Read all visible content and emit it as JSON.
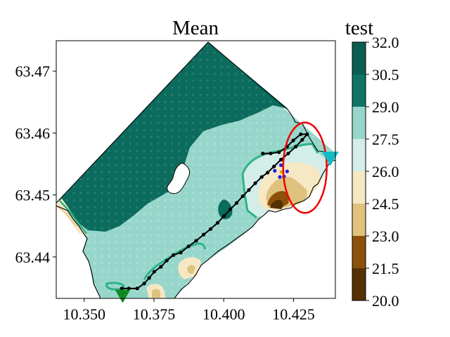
{
  "chart_data": {
    "type": "heatmap",
    "title": "Mean",
    "colorbar_label": "test",
    "xlim": [
      10.34,
      10.44
    ],
    "ylim": [
      63.4333,
      63.4749
    ],
    "x_ticks": [
      "10.350",
      "10.375",
      "10.400",
      "10.425"
    ],
    "x_tick_values": [
      10.35,
      10.375,
      10.4,
      10.425
    ],
    "y_ticks": [
      "63.44",
      "63.45",
      "63.46",
      "63.47"
    ],
    "y_tick_values": [
      63.44,
      63.45,
      63.46,
      63.47
    ],
    "colorbar": {
      "levels": [
        20.0,
        21.5,
        23.0,
        24.5,
        26.0,
        27.5,
        29.0,
        30.5,
        32.0
      ],
      "level_labels": [
        "20.0",
        "21.5",
        "23.0",
        "24.5",
        "26.0",
        "27.5",
        "29.0",
        "30.5",
        "32.0"
      ],
      "colors": [
        "#543005",
        "#8c510a",
        "#dfc27d",
        "#f6e8c3",
        "#d3ede8",
        "#97d6ca",
        "#0f7466",
        "#0a5d50",
        "#003c30"
      ]
    },
    "colors": {
      "deep": "#0b6b5d",
      "light": "#97d6ca",
      "contour": "#2db387",
      "track": "#000000",
      "ellipse": "#ee0000",
      "points": "#1f1fe8",
      "center": "#e0a500",
      "marker_east": "#14bcc4",
      "marker_south": "#0f8a22"
    },
    "track": [
      [
        10.3635,
        63.4349
      ],
      [
        10.366,
        63.4349
      ],
      [
        10.369,
        63.4349
      ],
      [
        10.3715,
        63.4357
      ],
      [
        10.3733,
        63.4366
      ],
      [
        10.3751,
        63.4376
      ],
      [
        10.3775,
        63.4384
      ],
      [
        10.3796,
        63.4394
      ],
      [
        10.382,
        63.4403
      ],
      [
        10.3846,
        63.4407
      ],
      [
        10.3874,
        63.4417
      ],
      [
        10.3901,
        63.4426
      ],
      [
        10.3928,
        63.4436
      ],
      [
        10.3953,
        63.4445
      ],
      [
        10.3978,
        63.4455
      ],
      [
        10.4001,
        63.4466
      ],
      [
        10.4024,
        63.4477
      ],
      [
        10.4046,
        63.4487
      ],
      [
        10.4068,
        63.4498
      ],
      [
        10.409,
        63.4508
      ],
      [
        10.4113,
        63.4519
      ],
      [
        10.4136,
        63.4529
      ],
      [
        10.4157,
        63.4536
      ],
      [
        10.418,
        63.4546
      ],
      [
        10.4205,
        63.4557
      ],
      [
        10.4231,
        63.4567
      ],
      [
        10.4258,
        63.4578
      ],
      [
        10.4281,
        63.4589
      ],
      [
        10.4299,
        63.4598
      ],
      [
        10.4276,
        63.4598
      ],
      [
        10.4249,
        63.4588
      ],
      [
        10.4227,
        63.4578
      ],
      [
        10.4198,
        63.4569
      ],
      [
        10.4168,
        63.4567
      ],
      [
        10.414,
        63.4567
      ]
    ],
    "sample_points": [
      [
        10.4205,
        63.4548
      ],
      [
        10.4183,
        63.4539
      ],
      [
        10.4227,
        63.4538
      ],
      [
        10.4216,
        63.453
      ],
      [
        10.4201,
        63.4529
      ]
    ],
    "center_point": [
      10.4207,
      63.4537
    ],
    "ellipse": {
      "cx": 10.4291,
      "cy": 63.4544,
      "rx": 0.0078,
      "ry": 0.0073
    },
    "markers": {
      "east": [
        10.4382,
        63.4559
      ],
      "south": [
        10.3638,
        63.4337
      ]
    }
  }
}
